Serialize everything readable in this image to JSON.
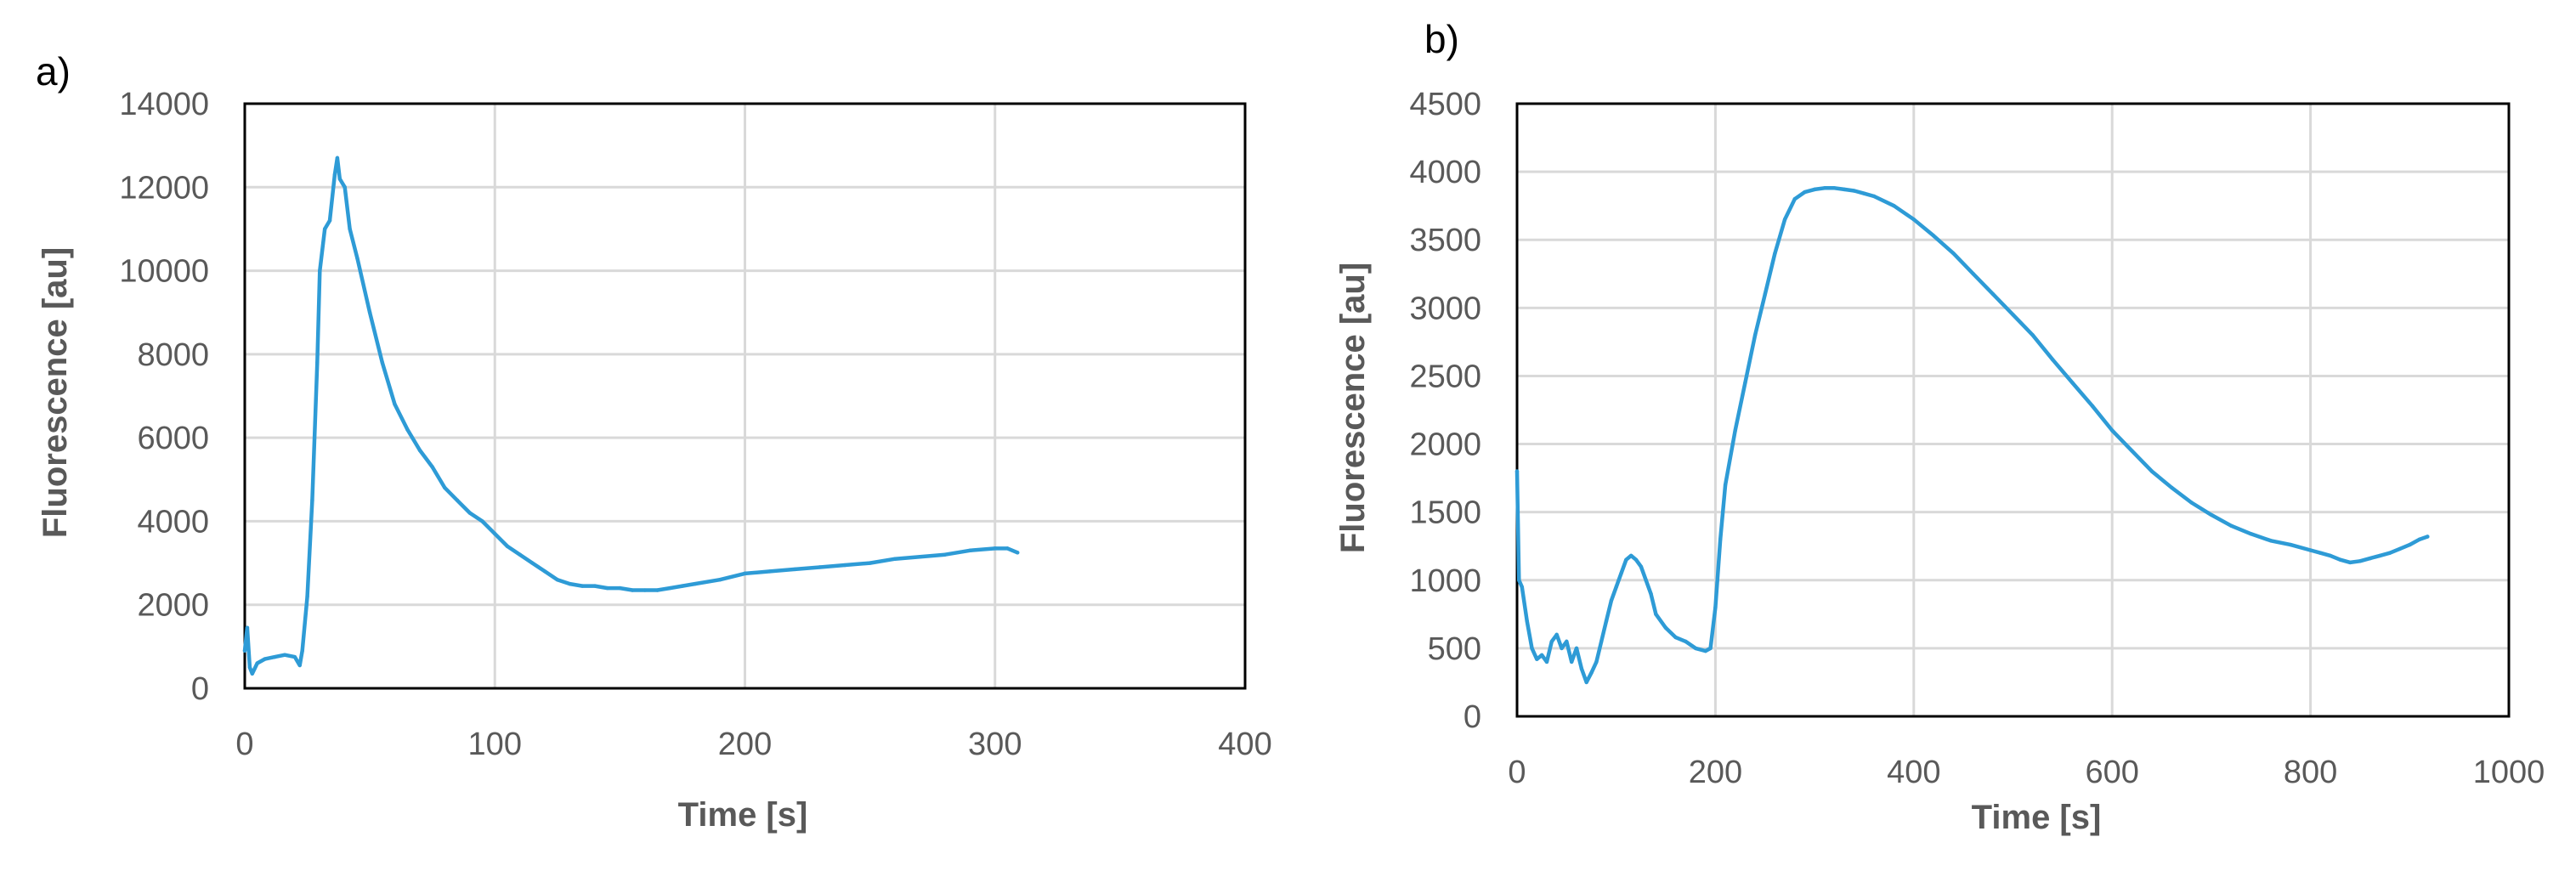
{
  "chart_data": [
    {
      "panel": "a)",
      "type": "line",
      "title": "",
      "xlabel": "Time [s]",
      "ylabel": "Fluorescence [au]",
      "xlim": [
        0,
        400
      ],
      "ylim": [
        0,
        14000
      ],
      "xticks": [
        0,
        100,
        200,
        300,
        400
      ],
      "yticks": [
        0,
        2000,
        4000,
        6000,
        8000,
        10000,
        12000,
        14000
      ],
      "grid": true,
      "legend": "none",
      "color": "#2e9bd6",
      "series": [
        {
          "x": [
            0,
            1,
            2,
            3,
            5,
            8,
            12,
            16,
            20,
            22,
            23,
            25,
            27,
            29,
            30,
            32,
            34,
            36,
            37,
            38,
            40,
            42,
            45,
            50,
            55,
            60,
            65,
            70,
            75,
            80,
            85,
            90,
            95,
            100,
            105,
            110,
            115,
            120,
            125,
            130,
            135,
            140,
            145,
            150,
            155,
            160,
            165,
            170,
            175,
            180,
            190,
            200,
            210,
            220,
            230,
            240,
            250,
            260,
            270,
            280,
            290,
            300,
            305,
            309
          ],
          "y": [
            900,
            1450,
            500,
            350,
            600,
            700,
            750,
            800,
            750,
            550,
            900,
            2200,
            4500,
            7800,
            10000,
            11000,
            11200,
            12300,
            12700,
            12200,
            12000,
            11000,
            10300,
            9000,
            7800,
            6800,
            6200,
            5700,
            5300,
            4800,
            4500,
            4200,
            4000,
            3700,
            3400,
            3200,
            3000,
            2800,
            2600,
            2500,
            2450,
            2450,
            2400,
            2400,
            2350,
            2350,
            2350,
            2400,
            2450,
            2500,
            2600,
            2750,
            2800,
            2850,
            2900,
            2950,
            3000,
            3100,
            3150,
            3200,
            3300,
            3350,
            3350,
            3250
          ]
        }
      ]
    },
    {
      "panel": "b)",
      "type": "line",
      "title": "",
      "xlabel": "Time [s]",
      "ylabel": "Fluorescence [au]",
      "xlim": [
        0,
        1000
      ],
      "ylim": [
        0,
        4500
      ],
      "xticks": [
        0,
        200,
        400,
        600,
        800,
        1000
      ],
      "yticks": [
        0,
        500,
        1000,
        1500,
        2000,
        2500,
        3000,
        3500,
        4000,
        4500
      ],
      "grid": true,
      "legend": "none",
      "color": "#2e9bd6",
      "series": [
        {
          "x": [
            0,
            2,
            5,
            10,
            15,
            20,
            25,
            30,
            35,
            40,
            45,
            50,
            55,
            60,
            65,
            70,
            75,
            80,
            85,
            90,
            95,
            100,
            105,
            110,
            115,
            120,
            125,
            130,
            135,
            140,
            150,
            160,
            170,
            180,
            190,
            195,
            200,
            205,
            210,
            220,
            230,
            240,
            250,
            260,
            270,
            280,
            290,
            300,
            310,
            320,
            330,
            340,
            350,
            360,
            380,
            400,
            420,
            440,
            460,
            480,
            500,
            520,
            540,
            560,
            580,
            600,
            620,
            640,
            660,
            680,
            700,
            720,
            740,
            760,
            780,
            800,
            810,
            820,
            830,
            840,
            850,
            860,
            870,
            880,
            890,
            900,
            910,
            918
          ],
          "y": [
            1800,
            1000,
            950,
            700,
            500,
            420,
            450,
            400,
            550,
            600,
            500,
            550,
            400,
            500,
            350,
            250,
            320,
            400,
            550,
            700,
            850,
            950,
            1050,
            1150,
            1180,
            1150,
            1100,
            1000,
            900,
            750,
            650,
            580,
            550,
            500,
            480,
            500,
            800,
            1300,
            1700,
            2100,
            2450,
            2800,
            3100,
            3400,
            3650,
            3800,
            3850,
            3870,
            3880,
            3880,
            3870,
            3860,
            3840,
            3820,
            3750,
            3650,
            3530,
            3400,
            3250,
            3100,
            2950,
            2800,
            2620,
            2450,
            2280,
            2100,
            1950,
            1800,
            1680,
            1570,
            1480,
            1400,
            1340,
            1290,
            1260,
            1220,
            1200,
            1180,
            1150,
            1130,
            1140,
            1160,
            1180,
            1200,
            1230,
            1260,
            1300,
            1320
          ]
        }
      ]
    }
  ]
}
